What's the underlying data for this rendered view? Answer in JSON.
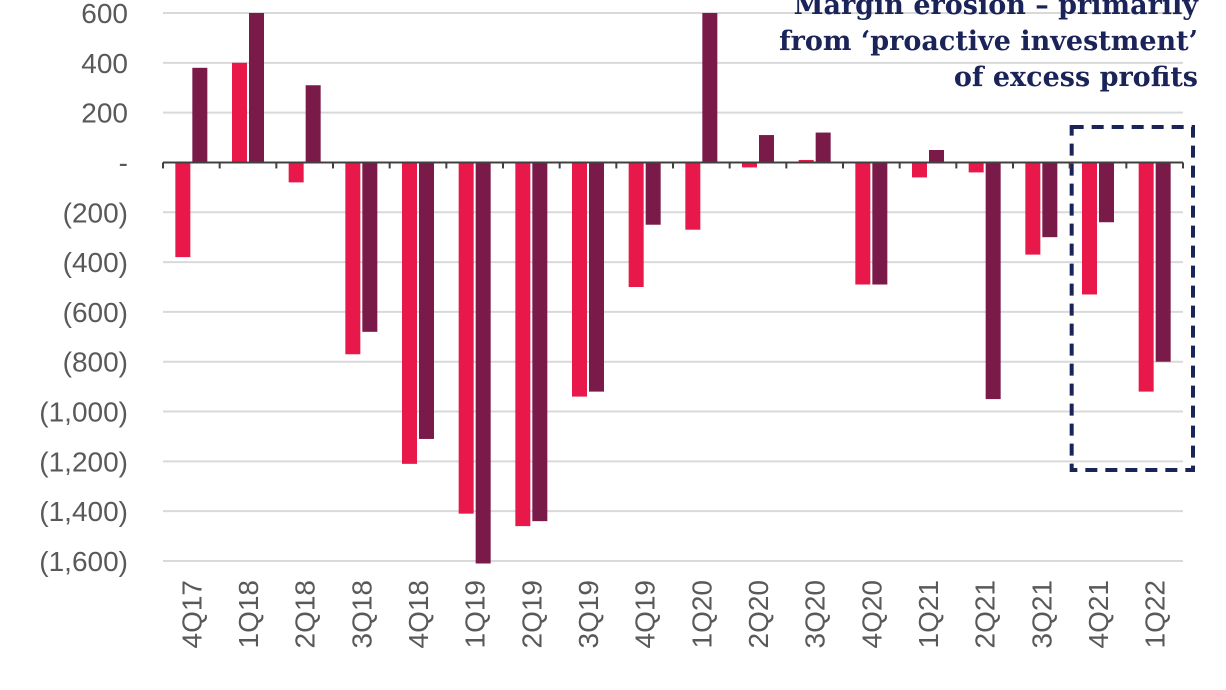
{
  "chart_data": {
    "type": "bar",
    "categories": [
      "4Q17",
      "1Q18",
      "2Q18",
      "3Q18",
      "4Q18",
      "1Q19",
      "2Q19",
      "3Q19",
      "4Q19",
      "1Q20",
      "2Q20",
      "3Q20",
      "4Q20",
      "1Q21",
      "2Q21",
      "3Q21",
      "4Q21",
      "1Q22"
    ],
    "series": [
      {
        "color": "#e8194a",
        "values": [
          -380,
          400,
          -80,
          -770,
          -1210,
          -1410,
          -1460,
          -940,
          -500,
          -270,
          -20,
          10,
          -490,
          -60,
          -40,
          -370,
          -530,
          -920
        ]
      },
      {
        "color": "#7a1a49",
        "values": [
          380,
          600,
          310,
          -680,
          -1110,
          -1610,
          -1440,
          -920,
          -250,
          600,
          110,
          120,
          -490,
          50,
          -950,
          -300,
          -240,
          -800
        ]
      }
    ],
    "ylim": [
      -1600,
      600
    ],
    "yticks": [
      600,
      400,
      200,
      0,
      -200,
      -400,
      -600,
      -800,
      -1000,
      -1200,
      -1400,
      -1600
    ],
    "ytick_labels": [
      "600",
      "400",
      "200",
      "-",
      "(200)",
      "(400)",
      "(600)",
      "(800)",
      "(1,000)",
      "(1,200)",
      "(1,400)",
      "(1,600)"
    ],
    "grid": true,
    "annotation": {
      "lines": [
        "Margin erosion – primarily",
        "from ‘proactive investment’",
        "of excess profits"
      ],
      "color": "#1b2459"
    },
    "highlight_categories": [
      "4Q21",
      "1Q22"
    ]
  }
}
